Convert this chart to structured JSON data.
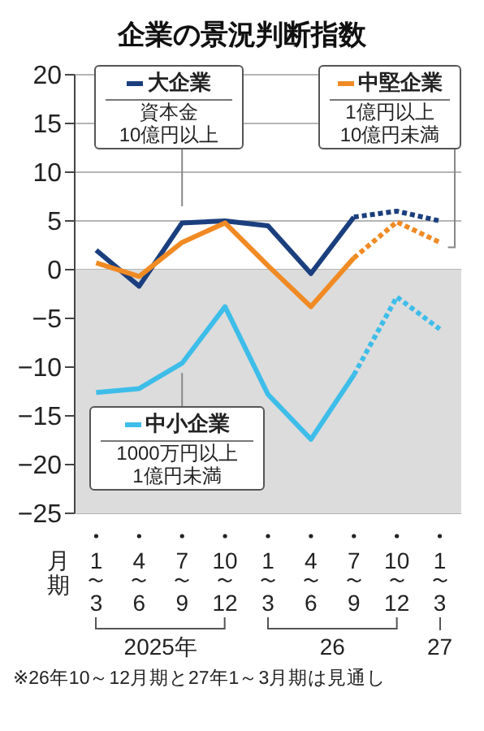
{
  "chart_data": {
    "type": "line",
    "title": "企業の景況判断指数",
    "xlabel": "月期",
    "categories": [
      "1〜3",
      "4〜6",
      "7〜9",
      "10〜12",
      "1〜3",
      "4〜6",
      "7〜9",
      "10〜12",
      "1〜3"
    ],
    "series": [
      {
        "name": "大企業",
        "color": "#1b3f7e",
        "line_style": "solid",
        "values": [
          2.0,
          -1.7,
          4.8,
          5.0,
          4.5,
          -0.4,
          5.4,
          null,
          null
        ]
      },
      {
        "name": "中堅企業",
        "color": "#f08a24",
        "line_style": "solid",
        "values": [
          0.7,
          -0.7,
          2.8,
          4.8,
          0.4,
          -3.8,
          1.2,
          null,
          null
        ]
      },
      {
        "name": "中小企業",
        "color": "#3ebde9",
        "line_style": "solid",
        "values": [
          -12.6,
          -12.2,
          -9.6,
          -3.8,
          -12.8,
          -17.4,
          -10.8,
          null,
          null
        ]
      },
      {
        "color": "#1b3f7e",
        "line_style": "dotted",
        "values": [
          null,
          null,
          null,
          null,
          null,
          null,
          5.4,
          6.0,
          5.0
        ]
      },
      {
        "color": "#f08a24",
        "line_style": "dotted",
        "values": [
          null,
          null,
          null,
          null,
          null,
          null,
          1.2,
          4.9,
          2.8
        ]
      },
      {
        "color": "#3ebde9",
        "line_style": "dotted",
        "values": [
          null,
          null,
          null,
          null,
          null,
          null,
          -10.8,
          -2.8,
          -6.1
        ]
      }
    ],
    "ylim": [
      -25,
      20
    ],
    "yticks": [
      -25,
      -20,
      -15,
      -10,
      -5,
      0,
      5,
      10,
      15,
      20
    ],
    "grid": "y",
    "legend": "top",
    "marker": "none",
    "bands": [
      {
        "axis": "y",
        "from": -25,
        "to": 0,
        "color": "#dcdcdc"
      }
    ],
    "annotations": [
      "資本金\n10億円以上",
      "1億円以上\n10億円未満",
      "1000万円以上\n1億円未満",
      "2025年",
      "26",
      "27",
      "※26年10～12月期と27年1～3月期は見通し"
    ]
  }
}
